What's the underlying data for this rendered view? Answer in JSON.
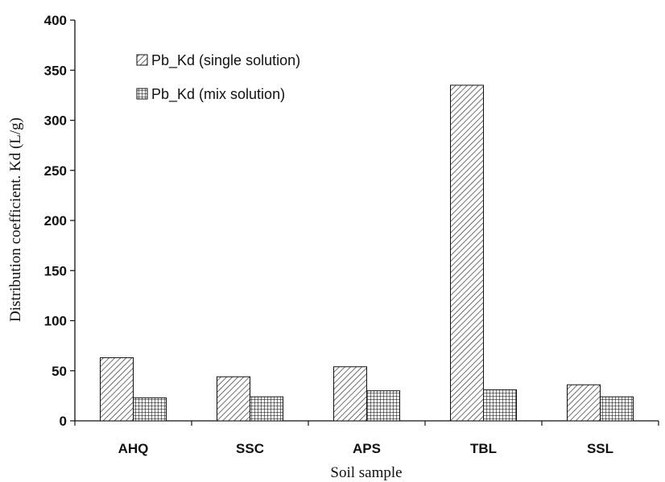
{
  "chart_data": {
    "type": "bar",
    "categories": [
      "AHQ",
      "SSC",
      "APS",
      "TBL",
      "SSL"
    ],
    "series": [
      {
        "name": "Pb_Kd (single solution)",
        "values": [
          63,
          44,
          54,
          335,
          36
        ],
        "pattern": "diagonal-hatch"
      },
      {
        "name": "Pb_Kd (mix solution)",
        "values": [
          23,
          24,
          30,
          31,
          24
        ],
        "pattern": "grid-hatch"
      }
    ],
    "title": "",
    "xlabel": "Soil sample",
    "ylabel": "Distribution coefficient. Kd (L/g)",
    "ylim": [
      0,
      400
    ],
    "yticks": [
      0,
      50,
      100,
      150,
      200,
      250,
      300,
      350,
      400
    ],
    "grid": false,
    "legend_position": "top-left"
  }
}
